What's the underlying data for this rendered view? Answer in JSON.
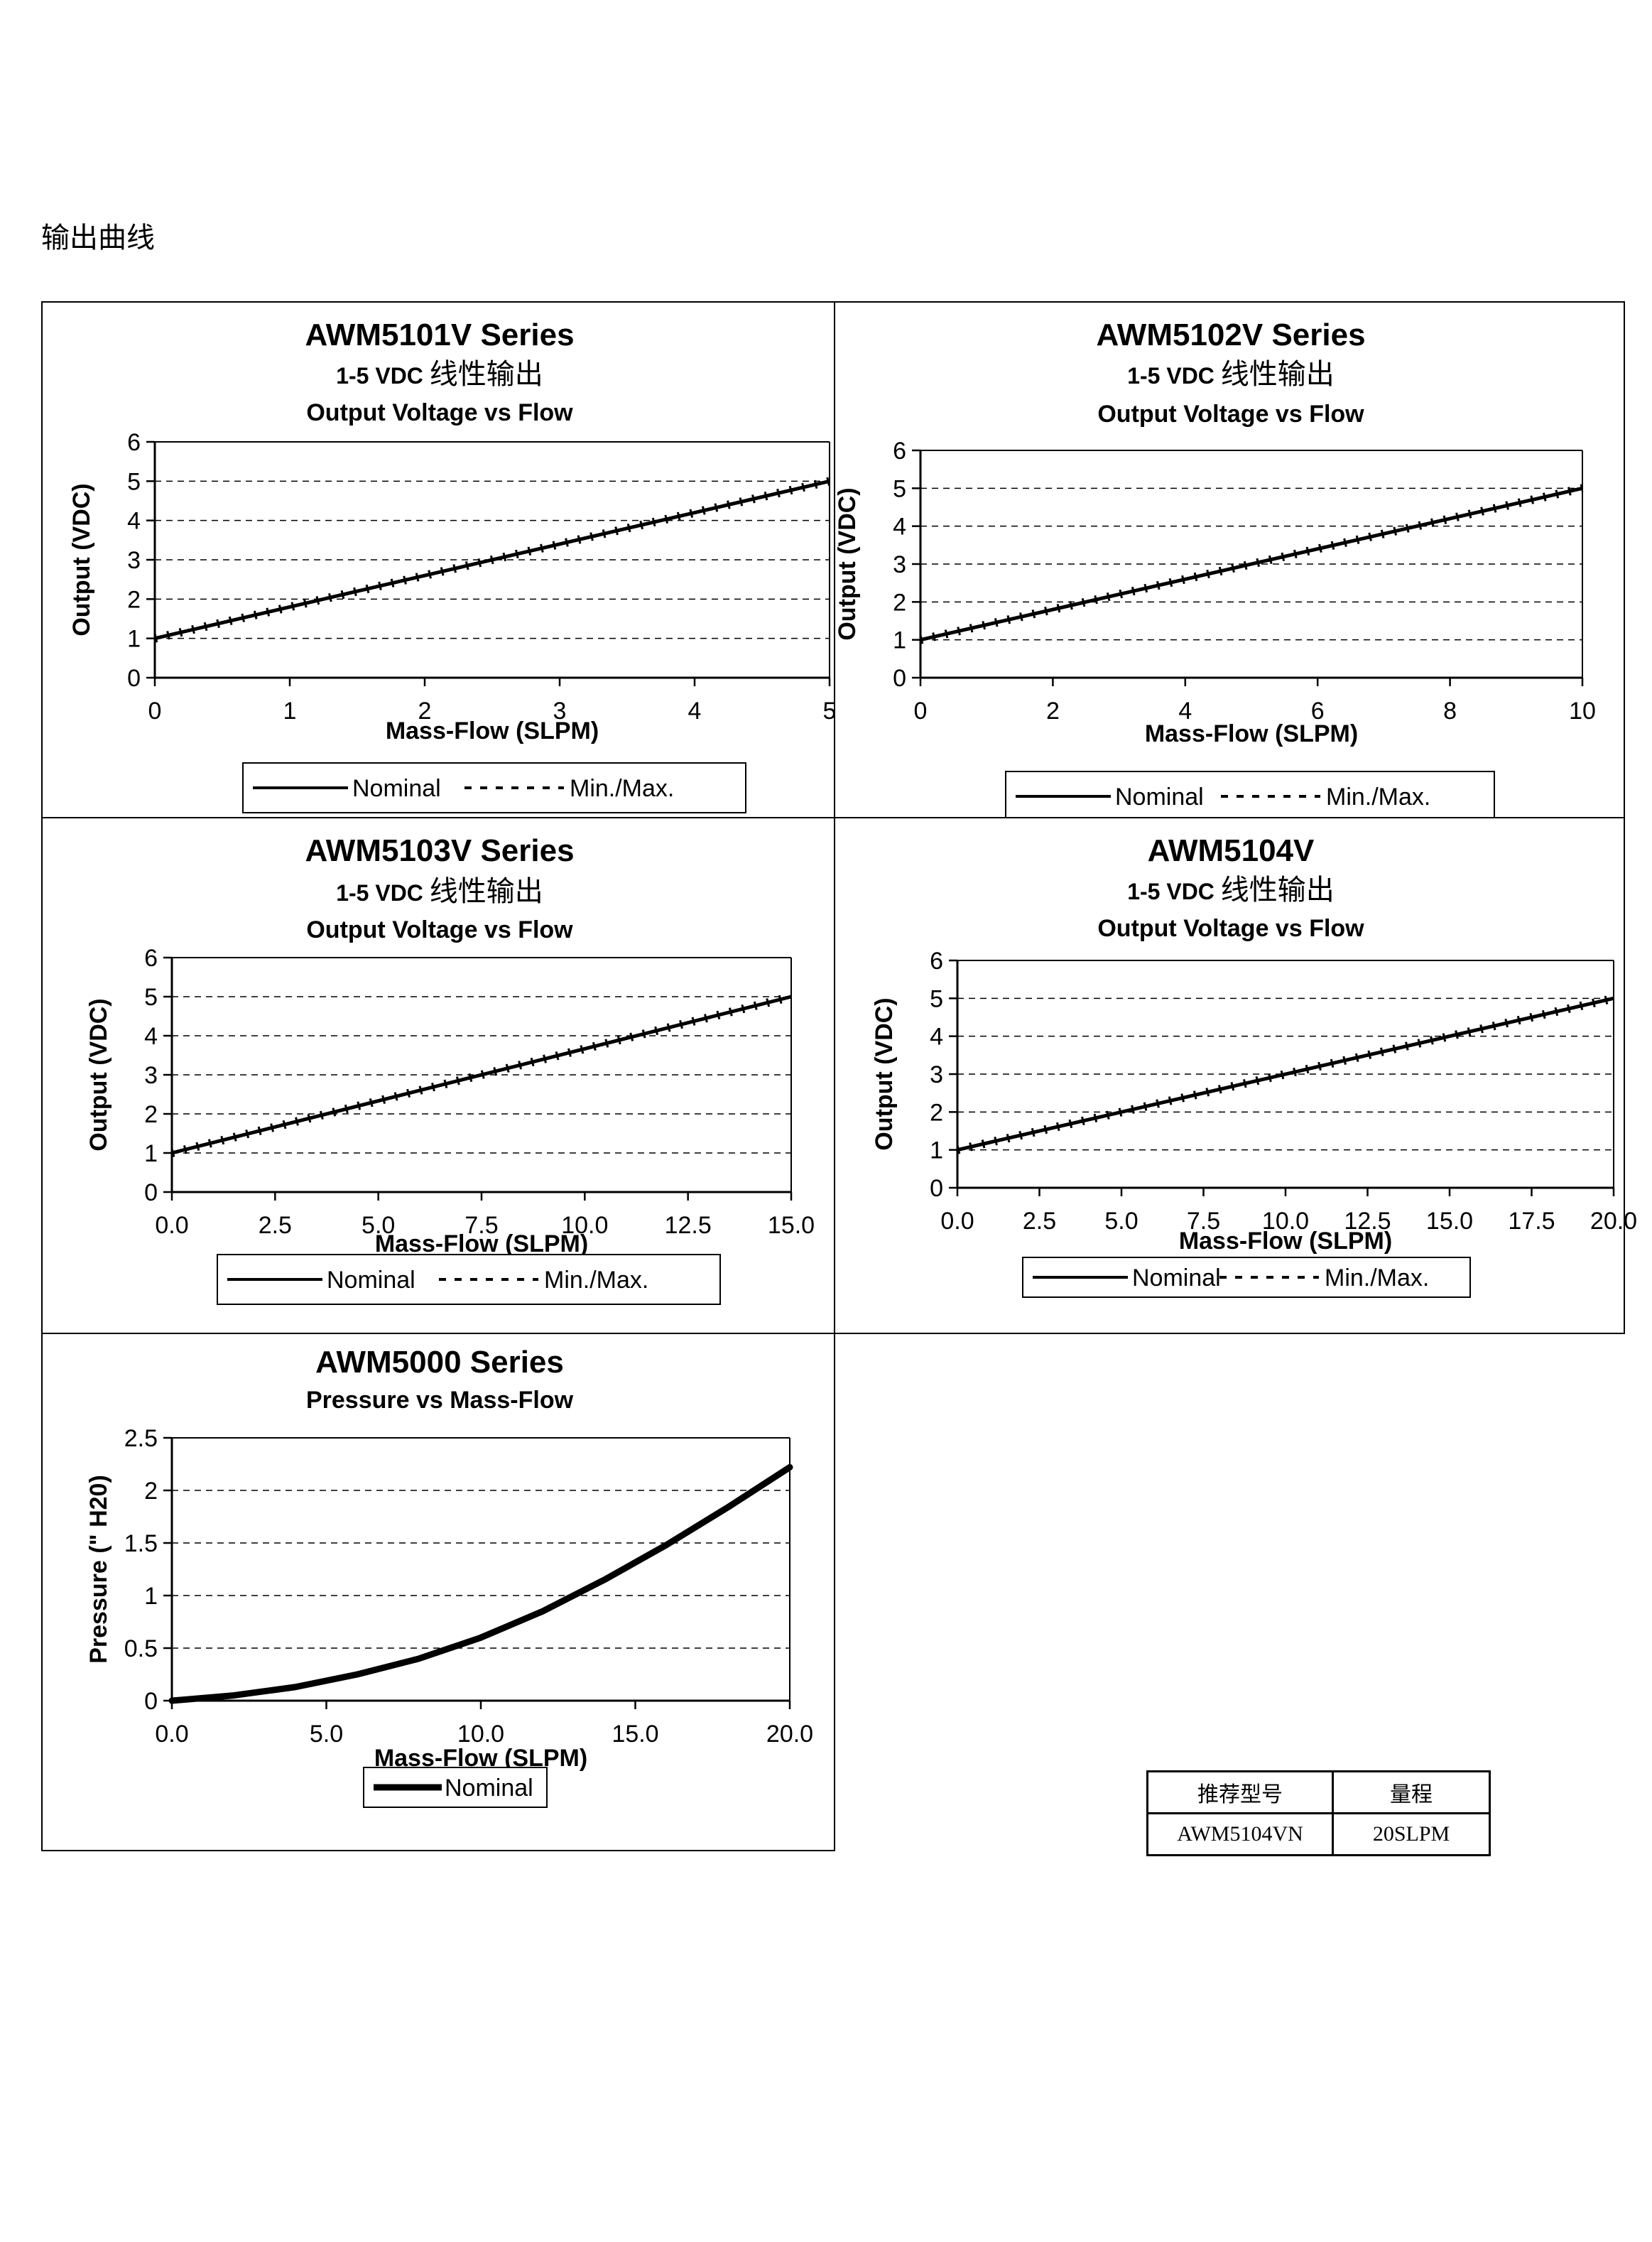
{
  "page_heading": "输出曲线",
  "panel_order": [
    "p1",
    "p2",
    "p3",
    "p4",
    "p5"
  ],
  "chart_data": [
    {
      "id": "p1",
      "type": "line",
      "title": "AWM5101V Series",
      "subtitle_bold": "1-5 VDC",
      "subtitle_cn": "线性输出",
      "chart_title": "Output Voltage vs Flow",
      "xlabel": "Mass-Flow (SLPM)",
      "ylabel": "Output (VDC)",
      "xlim": [
        0,
        5
      ],
      "ylim": [
        0,
        6
      ],
      "xticks": [
        "0",
        "1",
        "2",
        "3",
        "4",
        "5"
      ],
      "yticks": [
        "0",
        "1",
        "2",
        "3",
        "4",
        "5",
        "6"
      ],
      "gridlines_y": [
        1,
        2,
        3,
        4,
        5
      ],
      "series": [
        {
          "name": "Nominal",
          "style": "solid",
          "x": [
            0,
            5
          ],
          "y": [
            1,
            5
          ]
        },
        {
          "name": "Min./Max.",
          "style": "dashed",
          "x": [
            0,
            5
          ],
          "y": [
            1,
            5
          ]
        }
      ],
      "legend": [
        "Nominal",
        "Min./Max."
      ]
    },
    {
      "id": "p2",
      "type": "line",
      "title": "AWM5102V Series",
      "subtitle_bold": "1-5 VDC",
      "subtitle_cn": "线性输出",
      "chart_title": "Output Voltage vs Flow",
      "xlabel": "Mass-Flow (SLPM)",
      "ylabel": "Output (VDC)",
      "xlim": [
        0,
        10
      ],
      "ylim": [
        0,
        6
      ],
      "xticks": [
        "0",
        "2",
        "4",
        "6",
        "8",
        "10"
      ],
      "yticks": [
        "0",
        "1",
        "2",
        "3",
        "4",
        "5",
        "6"
      ],
      "gridlines_y": [
        1,
        2,
        3,
        4,
        5
      ],
      "series": [
        {
          "name": "Nominal",
          "style": "solid",
          "x": [
            0,
            10
          ],
          "y": [
            1,
            5
          ]
        },
        {
          "name": "Min./Max.",
          "style": "dashed",
          "x": [
            0,
            10
          ],
          "y": [
            1,
            5
          ]
        }
      ],
      "legend": [
        "Nominal",
        "Min./Max."
      ]
    },
    {
      "id": "p3",
      "type": "line",
      "title": "AWM5103V Series",
      "subtitle_bold": "1-5 VDC",
      "subtitle_cn": "线性输出",
      "chart_title": "Output Voltage vs Flow",
      "xlabel": "Mass-Flow (SLPM)",
      "ylabel": "Output (VDC)",
      "xlim": [
        0,
        15
      ],
      "ylim": [
        0,
        6
      ],
      "xticks": [
        "0.0",
        "2.5",
        "5.0",
        "7.5",
        "10.0",
        "12.5",
        "15.0"
      ],
      "yticks": [
        "0",
        "1",
        "2",
        "3",
        "4",
        "5",
        "6"
      ],
      "gridlines_y": [
        1,
        2,
        3,
        4,
        5
      ],
      "series": [
        {
          "name": "Nominal",
          "style": "solid",
          "x": [
            0,
            15
          ],
          "y": [
            1,
            5
          ]
        },
        {
          "name": "Min./Max.",
          "style": "dashed",
          "x": [
            0,
            15
          ],
          "y": [
            1,
            5
          ]
        }
      ],
      "legend": [
        "Nominal",
        "Min./Max."
      ]
    },
    {
      "id": "p4",
      "type": "line",
      "title": "AWM5104V",
      "subtitle_bold": "1-5 VDC",
      "subtitle_cn": "线性输出",
      "chart_title": "Output Voltage vs Flow",
      "xlabel": "Mass-Flow (SLPM)",
      "ylabel": "Output (VDC)",
      "xlim": [
        0,
        20
      ],
      "ylim": [
        0,
        6
      ],
      "xticks": [
        "0.0",
        "2.5",
        "5.0",
        "7.5",
        "10.0",
        "12.5",
        "15.0",
        "17.5",
        "20.0"
      ],
      "yticks": [
        "0",
        "1",
        "2",
        "3",
        "4",
        "5",
        "6"
      ],
      "gridlines_y": [
        1,
        2,
        3,
        4,
        5
      ],
      "series": [
        {
          "name": "Nominal",
          "style": "solid",
          "x": [
            0,
            20
          ],
          "y": [
            1,
            5
          ]
        },
        {
          "name": "Min./Max.",
          "style": "dashed",
          "x": [
            0,
            20
          ],
          "y": [
            1,
            5
          ]
        }
      ],
      "legend": [
        "Nominal",
        "Min./Max."
      ]
    },
    {
      "id": "p5",
      "type": "line",
      "title": "AWM5000 Series",
      "chart_title": "Pressure vs Mass-Flow",
      "xlabel": "Mass-Flow (SLPM)",
      "ylabel": "Pressure (\" H20)",
      "xlim": [
        0,
        20
      ],
      "ylim": [
        0,
        2.5
      ],
      "xticks": [
        "0.0",
        "5.0",
        "10.0",
        "15.0",
        "20.0"
      ],
      "yticks": [
        "0",
        "0.5",
        "1",
        "1.5",
        "2",
        "2.5"
      ],
      "gridlines_y": [
        0.5,
        1,
        1.5,
        2
      ],
      "series": [
        {
          "name": "Nominal",
          "style": "thick",
          "x": [
            0,
            2,
            4,
            6,
            8,
            10,
            12,
            14,
            16,
            18,
            20
          ],
          "y": [
            0,
            0.05,
            0.13,
            0.25,
            0.4,
            0.6,
            0.85,
            1.15,
            1.48,
            1.84,
            2.22
          ]
        }
      ],
      "legend": [
        "Nominal"
      ]
    }
  ],
  "recommend_table": {
    "headers": [
      "推荐型号",
      "量程"
    ],
    "rows": [
      [
        "AWM5104VN",
        "20SLPM"
      ]
    ]
  }
}
